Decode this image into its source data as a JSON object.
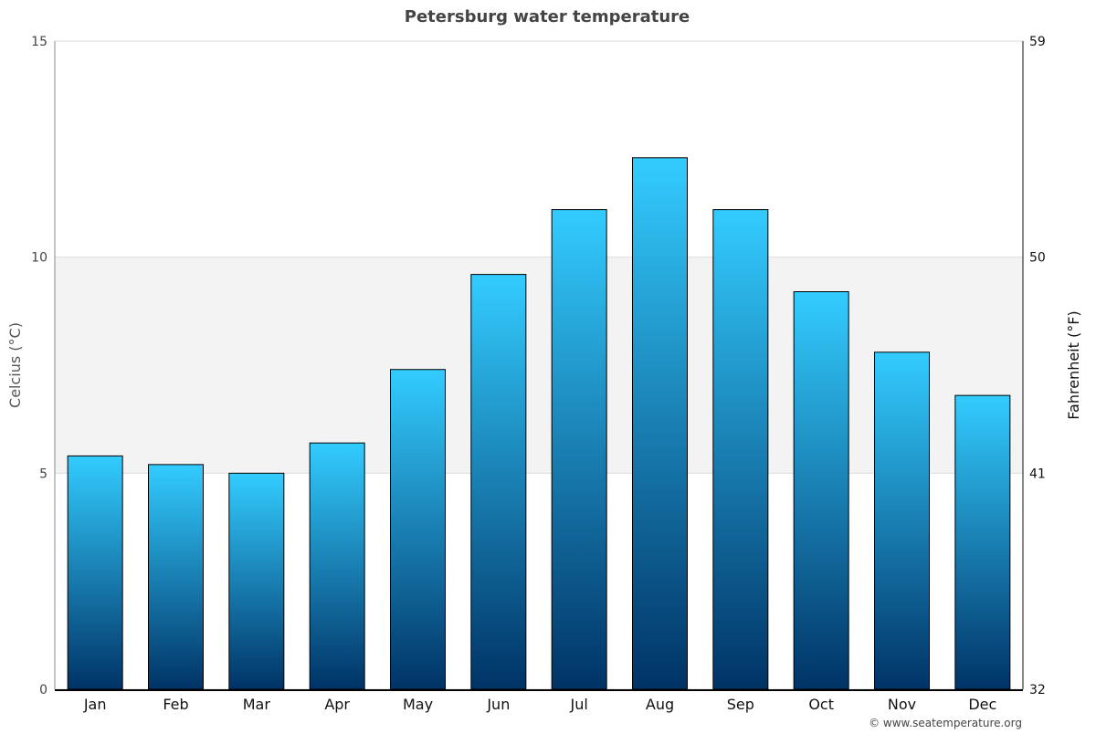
{
  "chart_data": {
    "type": "bar",
    "title": "Petersburg water temperature",
    "ylabel": "Celcius (°C)",
    "y2label": "Fahrenheit (°F)",
    "xlabel": "",
    "categories": [
      "Jan",
      "Feb",
      "Mar",
      "Apr",
      "May",
      "Jun",
      "Jul",
      "Aug",
      "Sep",
      "Oct",
      "Nov",
      "Dec"
    ],
    "values": [
      5.4,
      5.2,
      5.0,
      5.7,
      7.4,
      9.6,
      11.1,
      12.3,
      11.1,
      9.2,
      7.8,
      6.8
    ],
    "ylim": [
      0,
      15
    ],
    "yticks": [
      "0",
      "5",
      "10",
      "15"
    ],
    "y2ticks": [
      "32",
      "41",
      "50",
      "59"
    ],
    "grid": true,
    "bar_color_top": "#33ccff",
    "bar_color_bottom": "#003366",
    "band_color": "#f3f3f3"
  },
  "credit": "© www.seatemperature.org"
}
